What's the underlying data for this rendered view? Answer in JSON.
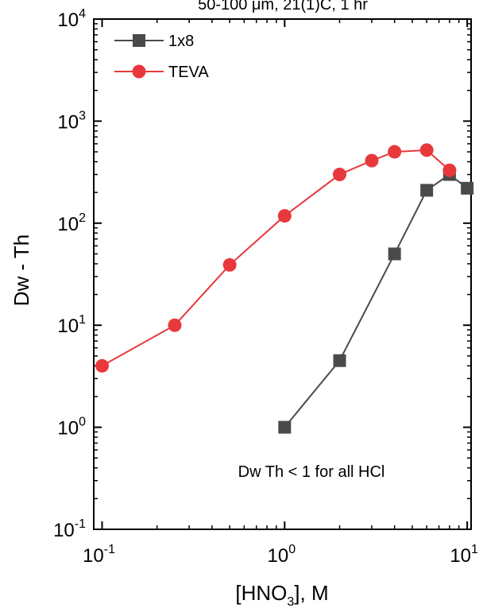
{
  "chart_data": {
    "type": "line",
    "title": "50-100 μm, 21(1)C, 1 hr",
    "xlabel": "[HNO3], M",
    "xlabel_main": "[HNO",
    "xlabel_sub": "3",
    "xlabel_tail": "], M",
    "ylabel": "Dw - Th",
    "xscale": "log",
    "yscale": "log",
    "xlim": [
      0.09,
      10.5
    ],
    "ylim": [
      0.1,
      10000
    ],
    "x_ticks": [
      {
        "value": 0.1,
        "base": "10",
        "exp": "-1"
      },
      {
        "value": 1,
        "base": "10",
        "exp": "0"
      },
      {
        "value": 10,
        "base": "10",
        "exp": "1"
      }
    ],
    "y_ticks": [
      {
        "value": 0.1,
        "base": "10",
        "exp": "-1"
      },
      {
        "value": 1,
        "base": "10",
        "exp": "0"
      },
      {
        "value": 10,
        "base": "10",
        "exp": "1"
      },
      {
        "value": 100,
        "base": "10",
        "exp": "2"
      },
      {
        "value": 1000,
        "base": "10",
        "exp": "3"
      },
      {
        "value": 10000,
        "base": "10",
        "exp": "4"
      }
    ],
    "grid": false,
    "legend_position": "top-left",
    "annotation": "Dw Th < 1 for all HCl",
    "series": [
      {
        "name": "1x8",
        "marker": "square",
        "color": "#4a4a4a",
        "x": [
          1,
          2,
          4,
          6,
          8,
          10
        ],
        "y": [
          1.0,
          4.5,
          50,
          210,
          300,
          220
        ]
      },
      {
        "name": "TEVA",
        "marker": "circle",
        "color": "#e8383c",
        "x": [
          0.1,
          0.25,
          0.5,
          1,
          2,
          3,
          4,
          6,
          8
        ],
        "y": [
          4,
          10,
          39,
          118,
          300,
          410,
          500,
          520,
          330
        ]
      }
    ]
  }
}
